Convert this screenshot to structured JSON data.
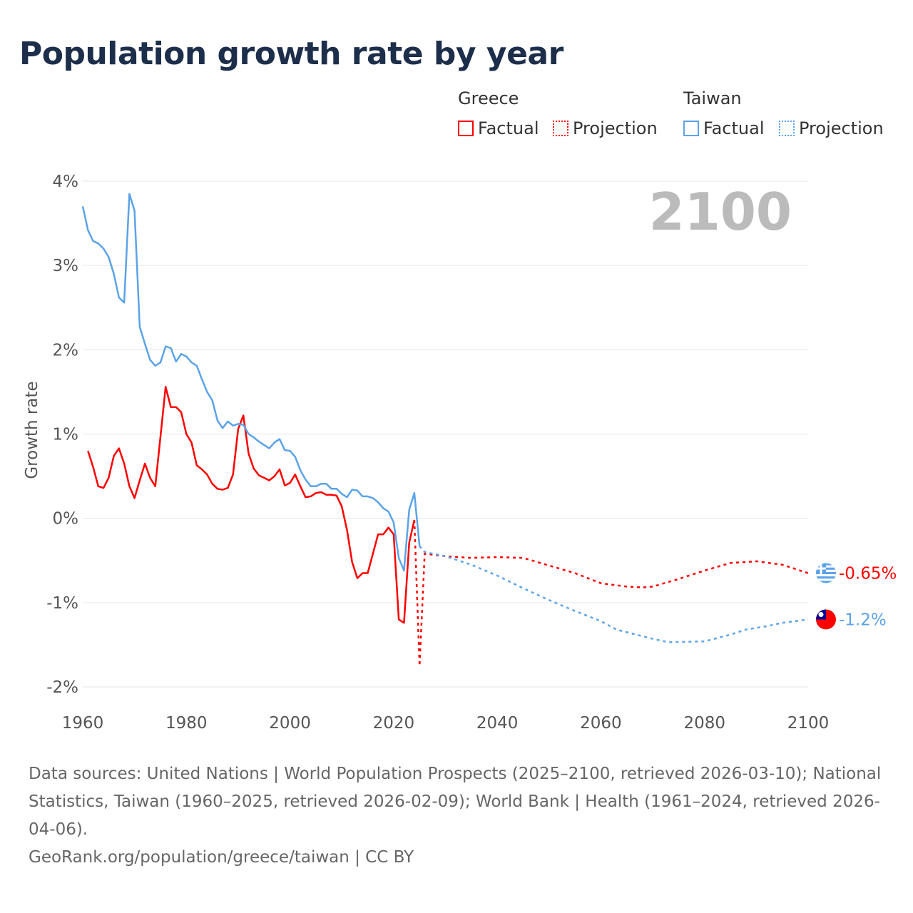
{
  "title": "Population growth rate by year",
  "legend": {
    "groups": [
      {
        "name": "Greece",
        "color": "#ff0000",
        "items": [
          "Factual",
          "Projection"
        ]
      },
      {
        "name": "Taiwan",
        "color": "#5ba3e8",
        "items": [
          "Factual",
          "Projection"
        ]
      }
    ]
  },
  "chart_data": {
    "type": "line",
    "title": "Population growth rate by year",
    "xlabel": "",
    "ylabel": "Growth rate",
    "xlim": [
      1960,
      2100
    ],
    "ylim": [
      -2,
      4
    ],
    "x_ticks": [
      "1960",
      "1980",
      "2000",
      "2020",
      "2040",
      "2060",
      "2080",
      "2100"
    ],
    "y_ticks": [
      "4%",
      "3%",
      "2%",
      "1%",
      "0%",
      "-1%",
      "-2%"
    ],
    "grid": true,
    "year_label": "2100",
    "series": [
      {
        "name": "Greece Factual",
        "color": "#ff0000",
        "style": "solid",
        "x": [
          1961,
          1962,
          1963,
          1964,
          1965,
          1966,
          1967,
          1968,
          1969,
          1970,
          1971,
          1972,
          1973,
          1974,
          1975,
          1976,
          1977,
          1978,
          1979,
          1980,
          1981,
          1982,
          1983,
          1984,
          1985,
          1986,
          1987,
          1988,
          1989,
          1990,
          1991,
          1992,
          1993,
          1994,
          1995,
          1996,
          1997,
          1998,
          1999,
          2000,
          2001,
          2002,
          2003,
          2004,
          2005,
          2006,
          2007,
          2008,
          2009,
          2010,
          2011,
          2012,
          2013,
          2014,
          2015,
          2016,
          2017,
          2018,
          2019,
          2020,
          2021,
          2022,
          2023,
          2024
        ],
        "y": [
          0.8,
          0.61,
          0.38,
          0.36,
          0.48,
          0.74,
          0.83,
          0.65,
          0.38,
          0.24,
          0.45,
          0.65,
          0.48,
          0.38,
          0.97,
          1.56,
          1.32,
          1.32,
          1.26,
          1.0,
          0.9,
          0.63,
          0.58,
          0.52,
          0.41,
          0.35,
          0.34,
          0.36,
          0.52,
          1.06,
          1.22,
          0.77,
          0.59,
          0.51,
          0.48,
          0.45,
          0.5,
          0.58,
          0.39,
          0.42,
          0.52,
          0.38,
          0.25,
          0.26,
          0.3,
          0.31,
          0.28,
          0.28,
          0.27,
          0.14,
          -0.14,
          -0.52,
          -0.71,
          -0.65,
          -0.65,
          -0.42,
          -0.19,
          -0.19,
          -0.11,
          -0.19,
          -1.2,
          -1.24,
          -0.29,
          -0.02
        ]
      },
      {
        "name": "Greece Projection",
        "color": "#ff0000",
        "style": "dotted",
        "x": [
          2024,
          2025,
          2026,
          2030,
          2035,
          2040,
          2045,
          2050,
          2055,
          2060,
          2065,
          2068,
          2070,
          2075,
          2080,
          2085,
          2090,
          2095,
          2100
        ],
        "y": [
          -0.02,
          -1.75,
          -0.42,
          -0.45,
          -0.47,
          -0.46,
          -0.47,
          -0.56,
          -0.65,
          -0.77,
          -0.81,
          -0.82,
          -0.81,
          -0.72,
          -0.62,
          -0.53,
          -0.51,
          -0.55,
          -0.65
        ]
      },
      {
        "name": "Taiwan Factual",
        "color": "#5ba3e8",
        "style": "solid",
        "x": [
          1960,
          1961,
          1962,
          1963,
          1964,
          1965,
          1966,
          1967,
          1968,
          1969,
          1970,
          1971,
          1972,
          1973,
          1974,
          1975,
          1976,
          1977,
          1978,
          1979,
          1980,
          1981,
          1982,
          1983,
          1984,
          1985,
          1986,
          1987,
          1988,
          1989,
          1990,
          1991,
          1992,
          1993,
          1994,
          1995,
          1996,
          1997,
          1998,
          1999,
          2000,
          2001,
          2002,
          2003,
          2004,
          2005,
          2006,
          2007,
          2008,
          2009,
          2010,
          2011,
          2012,
          2013,
          2014,
          2015,
          2016,
          2017,
          2018,
          2019,
          2020,
          2021,
          2022,
          2023,
          2024,
          2025
        ],
        "y": [
          3.7,
          3.42,
          3.29,
          3.26,
          3.2,
          3.1,
          2.9,
          2.62,
          2.56,
          3.85,
          3.65,
          2.27,
          2.07,
          1.88,
          1.81,
          1.85,
          2.04,
          2.02,
          1.86,
          1.95,
          1.92,
          1.85,
          1.81,
          1.65,
          1.5,
          1.4,
          1.16,
          1.07,
          1.15,
          1.1,
          1.12,
          1.11,
          1.0,
          0.96,
          0.91,
          0.87,
          0.83,
          0.9,
          0.94,
          0.81,
          0.8,
          0.73,
          0.57,
          0.46,
          0.38,
          0.38,
          0.41,
          0.41,
          0.35,
          0.35,
          0.29,
          0.25,
          0.34,
          0.33,
          0.26,
          0.26,
          0.24,
          0.19,
          0.12,
          0.08,
          -0.05,
          -0.47,
          -0.62,
          0.1,
          0.3,
          -0.33
        ]
      },
      {
        "name": "Taiwan Projection",
        "color": "#5ba3e8",
        "style": "dotted",
        "x": [
          2025,
          2026,
          2030,
          2035,
          2040,
          2045,
          2050,
          2055,
          2060,
          2063,
          2070,
          2073,
          2080,
          2085,
          2088,
          2092,
          2095,
          2100
        ],
        "y": [
          -0.33,
          -0.4,
          -0.45,
          -0.55,
          -0.68,
          -0.83,
          -0.97,
          -1.1,
          -1.22,
          -1.32,
          -1.43,
          -1.47,
          -1.46,
          -1.38,
          -1.32,
          -1.28,
          -1.24,
          -1.2
        ]
      }
    ],
    "end_labels": [
      {
        "country": "Greece",
        "value": "-0.65%",
        "y": -0.65,
        "color": "#ff0000"
      },
      {
        "country": "Taiwan",
        "value": "-1.2%",
        "y": -1.2,
        "color": "#5ba3e8"
      }
    ]
  },
  "footer": {
    "sources": "Data sources: United Nations | World Population Prospects (2025–2100, retrieved 2026-03-10); National Statistics, Taiwan (1960–2025, retrieved 2026-02-09); World Bank | Health (1961–2024, retrieved 2026-04-06).",
    "credit": "GeoRank.org/population/greece/taiwan | CC BY"
  }
}
